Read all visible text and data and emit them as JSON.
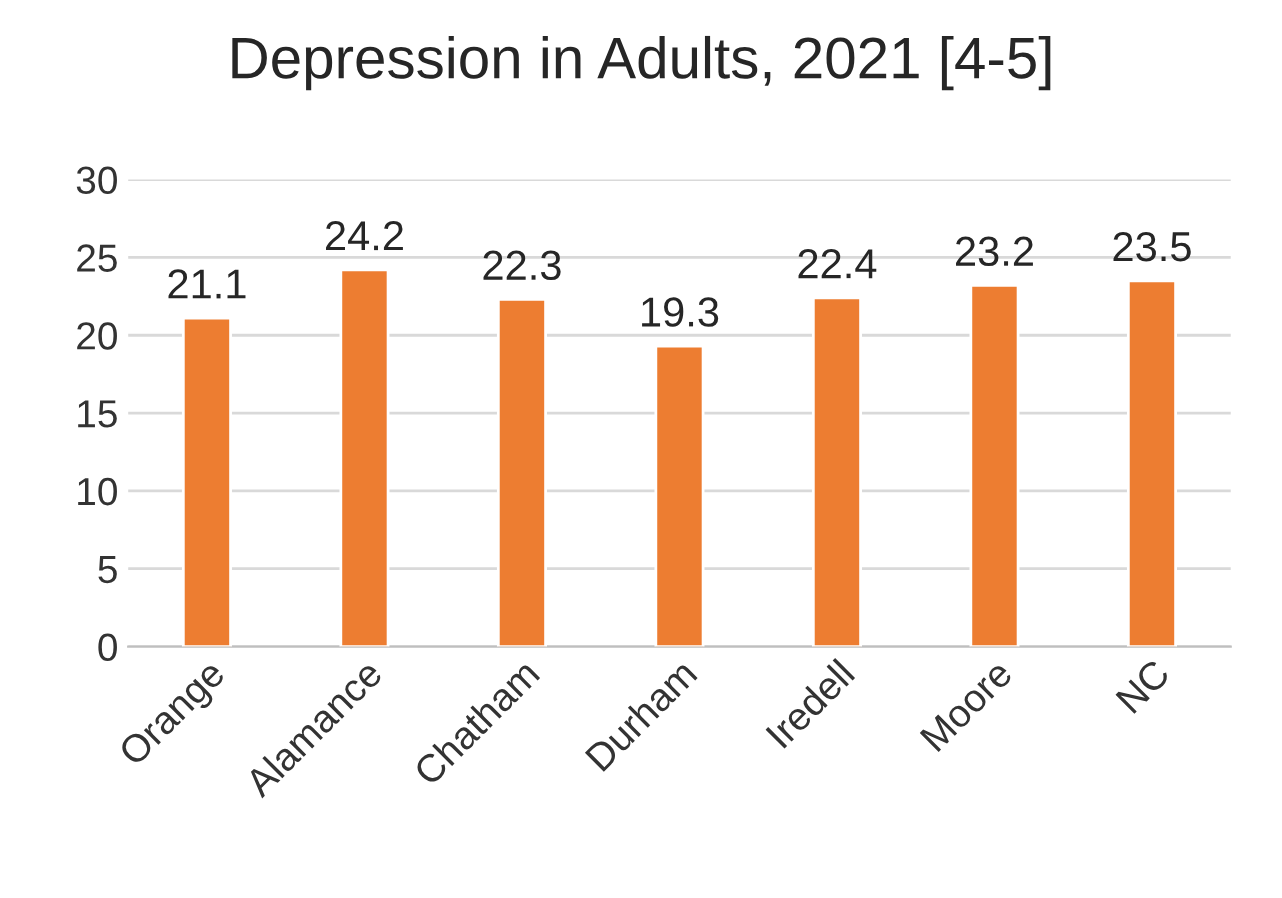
{
  "chart_data": {
    "type": "bar",
    "title": "Depression in Adults, 2021 [4-5]",
    "categories": [
      "Orange",
      "Alamance",
      "Chatham",
      "Durham",
      "Iredell",
      "Moore",
      "NC"
    ],
    "values": [
      21.1,
      24.2,
      22.3,
      19.3,
      22.4,
      23.2,
      23.5
    ],
    "color": "#ed7d31",
    "ylim": [
      0,
      30
    ],
    "yticks": [
      0,
      5,
      10,
      15,
      20,
      25,
      30
    ],
    "grid": "y",
    "data_labels": true
  }
}
